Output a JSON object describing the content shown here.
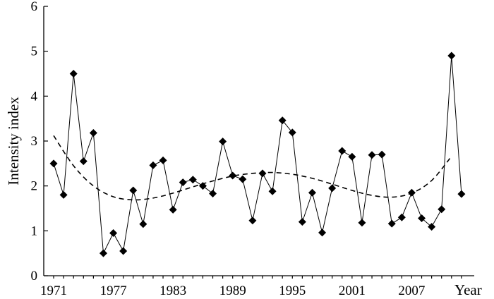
{
  "chart_data": {
    "type": "line",
    "title": "",
    "xlabel": "Year",
    "ylabel": "Intensity index",
    "xlim": [
      1971,
      2013
    ],
    "ylim": [
      0,
      6
    ],
    "x_ticks": [
      1971,
      1977,
      1983,
      1989,
      1995,
      2001,
      2007
    ],
    "x_tick_labels": [
      "1971",
      "1977",
      "1983",
      "1989",
      "1995",
      "2001",
      "2007"
    ],
    "y_ticks": [
      0,
      1,
      2,
      3,
      4,
      5,
      6
    ],
    "y_tick_labels": [
      "0",
      "1",
      "2",
      "3",
      "4",
      "5",
      "6"
    ],
    "grid": false,
    "series": [
      {
        "style": "solid line with diamond markers",
        "color": "#000000",
        "x": [
          1971,
          1972,
          1973,
          1974,
          1975,
          1976,
          1977,
          1978,
          1979,
          1980,
          1981,
          1982,
          1983,
          1984,
          1985,
          1986,
          1987,
          1988,
          1989,
          1990,
          1991,
          1992,
          1993,
          1994,
          1995,
          1996,
          1997,
          1998,
          1999,
          2000,
          2001,
          2002,
          2003,
          2004,
          2005,
          2006,
          2007,
          2008,
          2009,
          2010,
          2011,
          2012
        ],
        "values": [
          2.5,
          1.8,
          4.5,
          2.55,
          3.18,
          0.5,
          0.95,
          0.55,
          1.9,
          1.15,
          2.46,
          2.57,
          1.47,
          2.08,
          2.14,
          2.0,
          1.83,
          2.99,
          2.23,
          2.15,
          1.23,
          2.28,
          1.88,
          3.46,
          3.19,
          1.2,
          1.85,
          0.96,
          1.95,
          2.78,
          2.65,
          1.18,
          2.69,
          2.7,
          1.16,
          1.3,
          1.85,
          1.28,
          1.09,
          1.48,
          4.9,
          1.82
        ]
      },
      {
        "style": "dashed trend curve",
        "color": "#000000",
        "x": [
          1971,
          1973,
          1975,
          1977,
          1979,
          1981,
          1983,
          1985,
          1987,
          1989,
          1991,
          1993,
          1995,
          1997,
          1999,
          2001,
          2003,
          2005,
          2007,
          2009,
          2011
        ],
        "values": [
          3.12,
          2.45,
          2.0,
          1.76,
          1.69,
          1.73,
          1.84,
          1.98,
          2.11,
          2.22,
          2.28,
          2.3,
          2.26,
          2.17,
          2.04,
          1.9,
          1.79,
          1.75,
          1.84,
          2.12,
          2.66
        ]
      }
    ]
  }
}
